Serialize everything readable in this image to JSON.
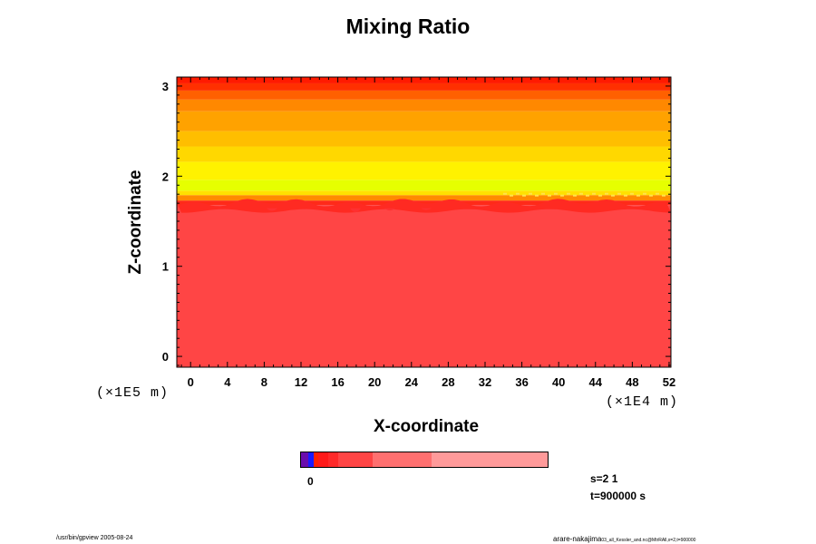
{
  "chart_data": {
    "type": "heatmap",
    "title": "Mixing Ratio",
    "xlabel": "X-coordinate",
    "ylabel": "Z-coordinate",
    "x_unit": "(×1E4 m)",
    "y_unit": "(×1E5 m)",
    "xlim": [
      -1.5,
      52.2
    ],
    "ylim": [
      -0.12,
      3.1
    ],
    "x_ticks": [
      "0",
      "4",
      "8",
      "12",
      "16",
      "20",
      "24",
      "28",
      "32",
      "36",
      "40",
      "44",
      "48",
      "52"
    ],
    "y_ticks": [
      "0",
      "1",
      "2",
      "3"
    ],
    "bands": [
      {
        "z_bottom": -0.12,
        "z_top": 1.68,
        "color": "#ff4545"
      },
      {
        "z_bottom": 1.68,
        "z_top": 1.73,
        "color": "#ff2a1a"
      },
      {
        "z_bottom": 1.73,
        "z_top": 1.79,
        "color": "#ff8a00"
      },
      {
        "z_bottom": 1.79,
        "z_top": 1.84,
        "color": "#ffe000"
      },
      {
        "z_bottom": 1.84,
        "z_top": 1.96,
        "color": "#e6ff00"
      },
      {
        "z_bottom": 1.96,
        "z_top": 2.16,
        "color": "#fff200"
      },
      {
        "z_bottom": 2.16,
        "z_top": 2.33,
        "color": "#ffd800"
      },
      {
        "z_bottom": 2.33,
        "z_top": 2.5,
        "color": "#ffbe00"
      },
      {
        "z_bottom": 2.5,
        "z_top": 2.72,
        "color": "#ffa200"
      },
      {
        "z_bottom": 2.72,
        "z_top": 2.85,
        "color": "#ff8800"
      },
      {
        "z_bottom": 2.85,
        "z_top": 2.95,
        "color": "#ff6000"
      },
      {
        "z_bottom": 2.95,
        "z_top": 3.03,
        "color": "#ff3000"
      },
      {
        "z_bottom": 3.03,
        "z_top": 3.1,
        "color": "#ff1a00"
      }
    ],
    "colorbar": {
      "label": "0",
      "segments": [
        {
          "fraction": 0.03,
          "color": "#6a0dad"
        },
        {
          "fraction": 0.02,
          "color": "#1a1aff"
        },
        {
          "fraction": 0.02,
          "color": "#ff2000"
        },
        {
          "fraction": 0.04,
          "color": "#ff1a1a"
        },
        {
          "fraction": 0.04,
          "color": "#ff2a2a"
        },
        {
          "fraction": 0.14,
          "color": "#ff4545"
        },
        {
          "fraction": 0.24,
          "color": "#ff7070"
        },
        {
          "fraction": 0.47,
          "color": "#ff9a9a"
        }
      ]
    }
  },
  "info": {
    "s_label": "s=2 1",
    "t_label": "t=900000 s"
  },
  "footer": {
    "left": "/usr/bin/gpview 2005-08-24",
    "right_main": "arare-nakajima",
    "right_small": "03_all_Kessler_and.nc@MtrRAll,x=2,t=900000"
  }
}
